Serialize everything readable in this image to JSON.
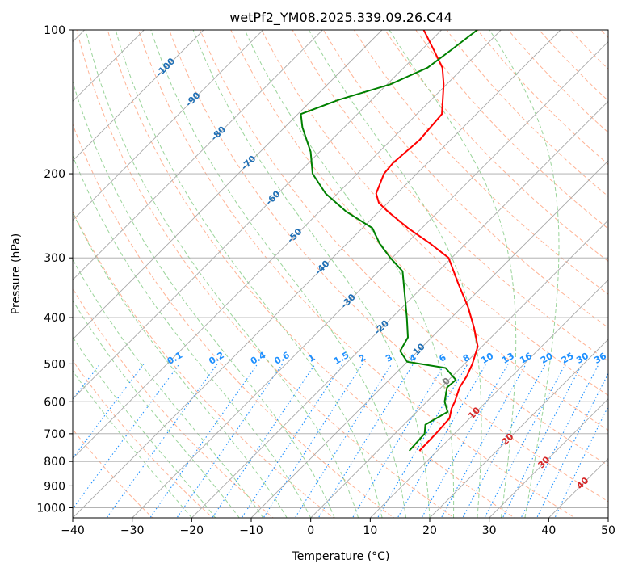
{
  "chart_data": {
    "type": "skew-t",
    "title": "wetPf2_YM08.2025.339.09.26.C44",
    "xlabel": "Temperature (°C)",
    "ylabel": "Pressure (hPa)",
    "xlim": [
      -40,
      50
    ],
    "ylim": [
      1050,
      100
    ],
    "xticks": [
      -40,
      -30,
      -20,
      -10,
      0,
      10,
      20,
      30,
      40,
      50
    ],
    "xtick_labels": [
      "−40",
      "−30",
      "−20",
      "−10",
      "0",
      "10",
      "20",
      "30",
      "40",
      "50"
    ],
    "yticks": [
      1000,
      900,
      800,
      700,
      600,
      500,
      400,
      300,
      200,
      100
    ],
    "ytick_labels": [
      "1000",
      "900",
      "800",
      "700",
      "600",
      "500",
      "400",
      "300",
      "200",
      "100"
    ],
    "grid": true,
    "series": [
      {
        "name": "temperature",
        "color": "#ff0000",
        "points": [
          {
            "p": 760,
            "t": 7.0
          },
          {
            "p": 700,
            "t": 6.9
          },
          {
            "p": 650,
            "t": 6.6
          },
          {
            "p": 620,
            "t": 5.3
          },
          {
            "p": 600,
            "t": 4.7
          },
          {
            "p": 560,
            "t": 3.1
          },
          {
            "p": 530,
            "t": 2.4
          },
          {
            "p": 500,
            "t": 1.3
          },
          {
            "p": 460,
            "t": -0.7
          },
          {
            "p": 420,
            "t": -4.5
          },
          {
            "p": 380,
            "t": -9.0
          },
          {
            "p": 340,
            "t": -14.5
          },
          {
            "p": 300,
            "t": -20.5
          },
          {
            "p": 280,
            "t": -26.0
          },
          {
            "p": 260,
            "t": -32.3
          },
          {
            "p": 240,
            "t": -38.5
          },
          {
            "p": 230,
            "t": -41.5
          },
          {
            "p": 220,
            "t": -43.5
          },
          {
            "p": 200,
            "t": -45.5
          },
          {
            "p": 190,
            "t": -45.8
          },
          {
            "p": 170,
            "t": -45.2
          },
          {
            "p": 150,
            "t": -45.8
          },
          {
            "p": 130,
            "t": -50.5
          },
          {
            "p": 120,
            "t": -53.5
          },
          {
            "p": 110,
            "t": -58.0
          },
          {
            "p": 100,
            "t": -63.0
          }
        ]
      },
      {
        "name": "dewpoint",
        "color": "#008000",
        "points": [
          {
            "p": 760,
            "t": 5.3
          },
          {
            "p": 700,
            "t": 5.0
          },
          {
            "p": 670,
            "t": 3.6
          },
          {
            "p": 650,
            "t": 4.4
          },
          {
            "p": 630,
            "t": 5.2
          },
          {
            "p": 600,
            "t": 3.0
          },
          {
            "p": 560,
            "t": 1.0
          },
          {
            "p": 540,
            "t": 1.2
          },
          {
            "p": 510,
            "t": -2.5
          },
          {
            "p": 495,
            "t": -10.0
          },
          {
            "p": 470,
            "t": -13.0
          },
          {
            "p": 440,
            "t": -14.0
          },
          {
            "p": 400,
            "t": -17.5
          },
          {
            "p": 360,
            "t": -21.5
          },
          {
            "p": 320,
            "t": -26.0
          },
          {
            "p": 300,
            "t": -30.3
          },
          {
            "p": 280,
            "t": -34.5
          },
          {
            "p": 260,
            "t": -38.3
          },
          {
            "p": 240,
            "t": -45.5
          },
          {
            "p": 220,
            "t": -52.0
          },
          {
            "p": 200,
            "t": -57.5
          },
          {
            "p": 180,
            "t": -61.5
          },
          {
            "p": 160,
            "t": -67.0
          },
          {
            "p": 150,
            "t": -69.5
          },
          {
            "p": 140,
            "t": -65.5
          },
          {
            "p": 130,
            "t": -59.5
          },
          {
            "p": 120,
            "t": -56.0
          },
          {
            "p": 110,
            "t": -55.0
          },
          {
            "p": 100,
            "t": -54.0
          }
        ]
      }
    ],
    "isotherm_labels": [
      {
        "text": "-100",
        "t": -100,
        "p": 120
      },
      {
        "text": "-90",
        "t": -90,
        "p": 140
      },
      {
        "text": "-80",
        "t": -80,
        "p": 165
      },
      {
        "text": "-70",
        "t": -70,
        "p": 190
      },
      {
        "text": "-60",
        "t": -60,
        "p": 225
      },
      {
        "text": "-50",
        "t": -50,
        "p": 270
      },
      {
        "text": "-40",
        "t": -40,
        "p": 315
      },
      {
        "text": "-30",
        "t": -30,
        "p": 370
      },
      {
        "text": "-20",
        "t": -20,
        "p": 420
      },
      {
        "text": "-10",
        "t": -10,
        "p": 470
      },
      {
        "text": "0",
        "t": 0,
        "p": 545
      },
      {
        "text": "10",
        "t": 10,
        "p": 635
      },
      {
        "text": "20",
        "t": 20,
        "p": 720
      },
      {
        "text": "30",
        "t": 30,
        "p": 805
      },
      {
        "text": "40",
        "t": 40,
        "p": 890
      }
    ],
    "mixing_ratio_labels": [
      "0.1",
      "0.2",
      "0.4",
      "0.6",
      "1",
      "1.5",
      "2",
      "3",
      "4",
      "6",
      "8",
      "10",
      "13",
      "16",
      "20",
      "25",
      "30",
      "36"
    ],
    "mixing_ratio_label_positions": [
      -23,
      -16,
      -9,
      -5,
      0,
      5,
      8.5,
      13,
      17,
      22,
      26,
      29.5,
      33,
      36,
      39.5,
      43,
      45.5,
      48.5
    ]
  },
  "colors": {
    "grid": "#a8a8a8",
    "dry_adiabat": "#ffa07a",
    "moist_adiabat": "#8fcf8f",
    "mixing_ratio": "#1e90ff",
    "isotherm_label_cold": "#1f6fb5",
    "isotherm_label_zero": "#808080",
    "isotherm_label_warm": "#d62728"
  }
}
